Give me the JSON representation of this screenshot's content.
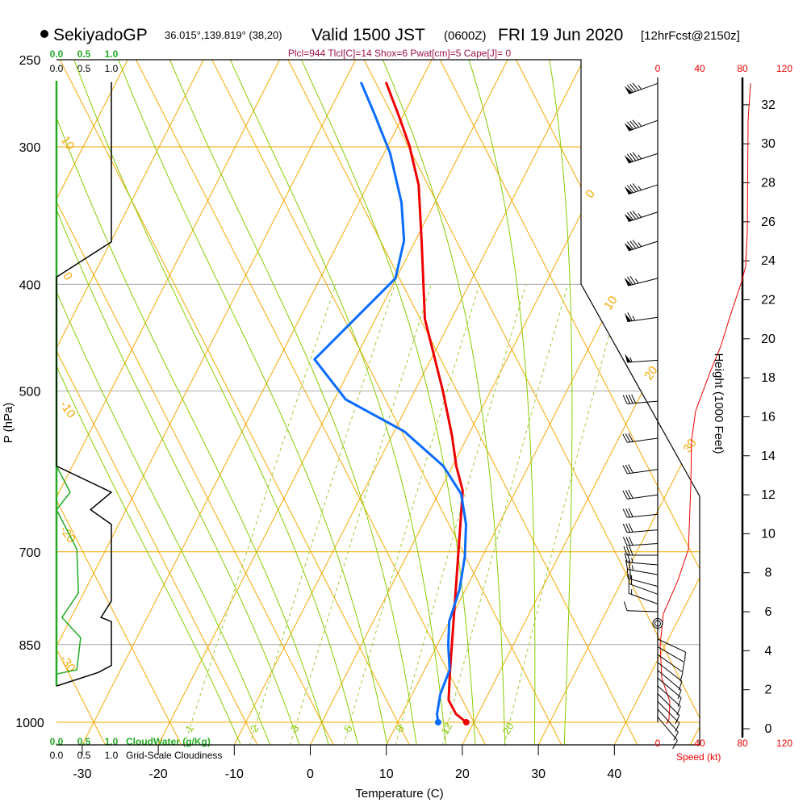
{
  "header": {
    "station": "SekiyadoGP",
    "coords": "36.015°,139.819° (38,20)",
    "valid": "Valid 1500 JST",
    "utc": "(0600Z)",
    "date": "FRI 19 Jun 2020",
    "forecast": "[12hrFcst@2150z]"
  },
  "indices": "Plcl=944 Tlcl[C]=14 Shox=6 Pwat[cm]=5 Cape[J]= 0",
  "colors": {
    "temperature": "#ee0000",
    "dewpoint": "#0a6cff",
    "isotherm": "#f5a800",
    "moist": "#88cc00",
    "cloudwater": "#22aa22",
    "indices": "#a0104a"
  },
  "chart_data": {
    "type": "line",
    "title": "SekiyadoGP Valid 1500 JST (0600Z) FRI 19 Jun 2020",
    "xlabel": "Temperature (C)",
    "ylabel": "P (hPa)",
    "pressure_ticks": [
      "250",
      "300",
      "400",
      "500",
      "700",
      "850",
      "1000"
    ],
    "temperature_ticks": [
      "-30",
      "-20",
      "-10",
      "0",
      "10",
      "20",
      "30",
      "40"
    ],
    "isotherm_labels": [
      "0",
      "10",
      "20",
      "30"
    ],
    "theta_labels": [
      "10",
      "0",
      "-10",
      "-20",
      "-30"
    ],
    "mixing_ratio_labels": [
      "1",
      "2",
      "3",
      "5",
      "8",
      "12",
      "20"
    ],
    "series": [
      {
        "name": "Temperature",
        "points": [
          [
            1000,
            19.0
          ],
          [
            983,
            17.1
          ],
          [
            955,
            15.2
          ],
          [
            904,
            13.6
          ],
          [
            616,
            3.0
          ],
          [
            585,
            0.5
          ],
          [
            549,
            -2.1
          ],
          [
            500,
            -6.3
          ],
          [
            430,
            -13.5
          ],
          [
            366,
            -19.1
          ],
          [
            325,
            -23.3
          ],
          [
            299,
            -27.2
          ],
          [
            282,
            -30.4
          ],
          [
            262,
            -34.5
          ]
        ]
      },
      {
        "name": "Dewpoint",
        "points": [
          [
            1000,
            15.3
          ],
          [
            983,
            14.6
          ],
          [
            943,
            13.7
          ],
          [
            896,
            13.3
          ],
          [
            852,
            11.5
          ],
          [
            810,
            10.0
          ],
          [
            757,
            9.2
          ],
          [
            707,
            7.7
          ],
          [
            661,
            5.7
          ],
          [
            620,
            3.0
          ],
          [
            585,
            -1.2
          ],
          [
            544,
            -8.7
          ],
          [
            509,
            -18.5
          ],
          [
            468,
            -25.3
          ],
          [
            437,
            -23.2
          ],
          [
            395,
            -20.1
          ],
          [
            365,
            -21.5
          ],
          [
            337,
            -24.4
          ],
          [
            304,
            -29.2
          ],
          [
            280,
            -33.9
          ],
          [
            262,
            -37.8
          ]
        ]
      }
    ],
    "cloudiness": {
      "label": "Grid-Scale Cloudiness",
      "ticks": [
        "0.0",
        "0.5",
        "1.0"
      ],
      "points": [
        [
          262,
          1.0
        ],
        [
          366,
          1.0
        ],
        [
          394,
          0
        ],
        [
          585,
          0
        ],
        [
          618,
          1.0
        ],
        [
          641,
          0.62
        ],
        [
          661,
          1.0
        ],
        [
          776,
          1.0
        ],
        [
          803,
          0.81
        ],
        [
          810,
          1.0
        ],
        [
          888,
          1.0
        ],
        [
          901,
          0.76
        ],
        [
          927,
          0
        ]
      ]
    },
    "cloud_water": {
      "label": "CloudWater (g/Kg)",
      "ticks": [
        "0.0",
        "0.5",
        "1.0"
      ],
      "points": [
        [
          585,
          0
        ],
        [
          618,
          0.25
        ],
        [
          641,
          0
        ],
        [
          696,
          0.37
        ],
        [
          763,
          0.4
        ],
        [
          803,
          0.1
        ],
        [
          838,
          0.44
        ],
        [
          896,
          0.37
        ],
        [
          904,
          0
        ]
      ]
    },
    "wind": {
      "height_label": "Height (1000 Feet)",
      "height_ticks": [
        "0",
        "2",
        "4",
        "6",
        "8",
        "10",
        "12",
        "14",
        "16",
        "18",
        "20",
        "22",
        "24",
        "26",
        "28",
        "30",
        "32"
      ],
      "speed_label": "Speed (kt)",
      "speed_ticks": [
        "0",
        "40",
        "80",
        "120"
      ],
      "speed_profile": [
        [
          0.25,
          8.4
        ],
        [
          0.5,
          10.7
        ],
        [
          1.4,
          11.4
        ],
        [
          2.6,
          3.8
        ],
        [
          4.3,
          2.3
        ],
        [
          5.9,
          5.3
        ],
        [
          7.6,
          19
        ],
        [
          9.2,
          29
        ],
        [
          12.5,
          31.2
        ],
        [
          14.8,
          32
        ],
        [
          16.3,
          35.8
        ],
        [
          18.3,
          49.5
        ],
        [
          19.6,
          59.4
        ],
        [
          21.2,
          68.6
        ],
        [
          22.9,
          79
        ],
        [
          23.7,
          83
        ],
        [
          25.4,
          84.6
        ],
        [
          31.2,
          85.3
        ],
        [
          33.1,
          87.6
        ]
      ],
      "barbs": [
        {
          "h": 33.1,
          "speed": 85,
          "dir": 250
        },
        {
          "h": 31.2,
          "speed": 85,
          "dir": 250
        },
        {
          "h": 29.5,
          "speed": 85,
          "dir": 252
        },
        {
          "h": 27.9,
          "speed": 85,
          "dir": 252
        },
        {
          "h": 26.5,
          "speed": 85,
          "dir": 252
        },
        {
          "h": 25.0,
          "speed": 85,
          "dir": 252
        },
        {
          "h": 23.1,
          "speed": 75,
          "dir": 256
        },
        {
          "h": 21.1,
          "speed": 65,
          "dir": 262
        },
        {
          "h": 18.9,
          "speed": 55,
          "dir": 266
        },
        {
          "h": 16.8,
          "speed": 40,
          "dir": 265
        },
        {
          "h": 14.9,
          "speed": 30,
          "dir": 262
        },
        {
          "h": 13.3,
          "speed": 30,
          "dir": 262
        },
        {
          "h": 12.0,
          "speed": 30,
          "dir": 262
        },
        {
          "h": 11.0,
          "speed": 30,
          "dir": 264
        },
        {
          "h": 10.2,
          "speed": 30,
          "dir": 265
        },
        {
          "h": 9.5,
          "speed": 30,
          "dir": 266
        },
        {
          "h": 8.9,
          "speed": 30,
          "dir": 270
        },
        {
          "h": 8.4,
          "speed": 25,
          "dir": 275
        },
        {
          "h": 7.9,
          "speed": 25,
          "dir": 280
        },
        {
          "h": 7.3,
          "speed": 20,
          "dir": 285
        },
        {
          "h": 6.9,
          "speed": 20,
          "dir": 290
        },
        {
          "h": 6.4,
          "speed": 15,
          "dir": 290
        },
        {
          "h": 6.0,
          "speed": 10,
          "dir": 272
        },
        {
          "h": 5.4,
          "speed": 0,
          "dir": 0
        },
        {
          "h": 4.6,
          "speed": 10,
          "dir": 115
        },
        {
          "h": 4.2,
          "speed": 10,
          "dir": 120
        },
        {
          "h": 3.8,
          "speed": 10,
          "dir": 125
        },
        {
          "h": 3.4,
          "speed": 10,
          "dir": 128
        },
        {
          "h": 3.0,
          "speed": 10,
          "dir": 130
        },
        {
          "h": 2.6,
          "speed": 10,
          "dir": 130
        },
        {
          "h": 2.2,
          "speed": 10,
          "dir": 132
        },
        {
          "h": 1.8,
          "speed": 10,
          "dir": 135
        },
        {
          "h": 1.4,
          "speed": 10,
          "dir": 135
        },
        {
          "h": 1.0,
          "speed": 10,
          "dir": 138
        },
        {
          "h": 0.6,
          "speed": 10,
          "dir": 140
        }
      ]
    }
  }
}
